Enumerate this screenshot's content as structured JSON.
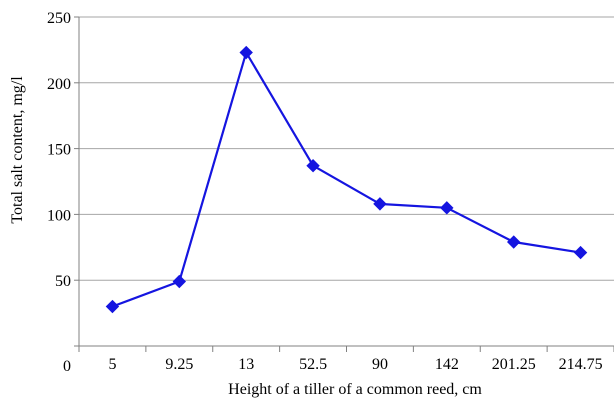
{
  "chart_data": {
    "type": "line",
    "categories": [
      "5",
      "9.25",
      "13",
      "52.5",
      "90",
      "142",
      "201.25",
      "214.75"
    ],
    "series": [
      {
        "values": [
          30,
          49,
          223,
          137,
          108,
          105,
          79,
          71
        ]
      }
    ],
    "xlabel": "Height of a tiller of a common reed, cm",
    "ylabel": "Total salt content, mg/l",
    "ylim": [
      0,
      250
    ],
    "yticks": [
      0,
      50,
      100,
      150,
      200,
      250
    ],
    "grid": "horizontal",
    "colors": {
      "series": "#1515e0",
      "grid": "#a6a6a6",
      "axis": "#808080"
    }
  }
}
